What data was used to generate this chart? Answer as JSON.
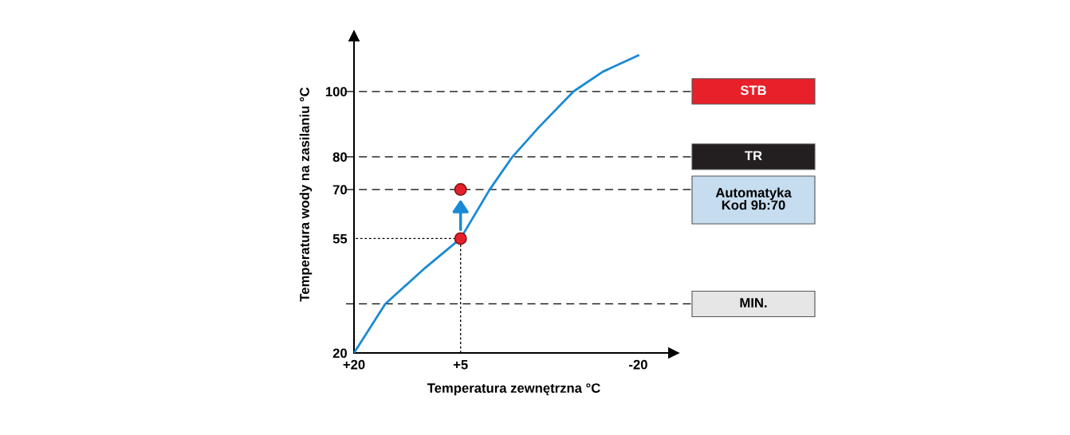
{
  "chart_data": {
    "type": "line",
    "xlabel": "Temperatura zewnętrzna °C",
    "ylabel": "Temperatura wody na zasilaniu °C",
    "xlim": [
      20,
      -25
    ],
    "xticks": [
      {
        "value": 20,
        "label": "+20"
      },
      {
        "value": 5,
        "label": "+5"
      },
      {
        "value": -20,
        "label": "-20"
      }
    ],
    "ylim": [
      20,
      117
    ],
    "yticks": [
      20,
      55,
      70,
      80,
      100
    ],
    "grid": false,
    "legend": false,
    "series": [
      {
        "type": "line",
        "color": "#1a8ad4",
        "x": [
          20,
          15.6,
          10,
          5,
          0.9,
          -2.3,
          -6,
          -10.9,
          -15,
          -20
        ],
        "values": [
          20,
          35,
          46,
          55,
          70,
          80,
          89,
          100,
          106,
          111
        ],
        "line_style": "solid",
        "marker": "none"
      },
      {
        "type": "line",
        "color": "#000000",
        "x": [
          5,
          5,
          20
        ],
        "values": [
          20,
          55,
          55
        ],
        "line_style": "dotted",
        "marker": "none"
      },
      {
        "type": "scatter",
        "color": "#e4202a",
        "x": [
          5,
          5
        ],
        "values": [
          55,
          70
        ],
        "marker": "circle"
      }
    ],
    "ref_lines": [
      {
        "axis": "y",
        "value": 100,
        "label": "STB",
        "color": "#000000",
        "line_style": "dashed"
      },
      {
        "axis": "y",
        "value": 80,
        "label": "TR",
        "color": "#000000",
        "line_style": "dashed"
      },
      {
        "axis": "y",
        "value": 70,
        "label": "Automatyka\nKod 9b:70",
        "color": "#000000",
        "line_style": "dashed"
      },
      {
        "axis": "y",
        "value": 35,
        "label": "MIN.",
        "color": "#000000",
        "line_style": "dashed"
      }
    ]
  }
}
